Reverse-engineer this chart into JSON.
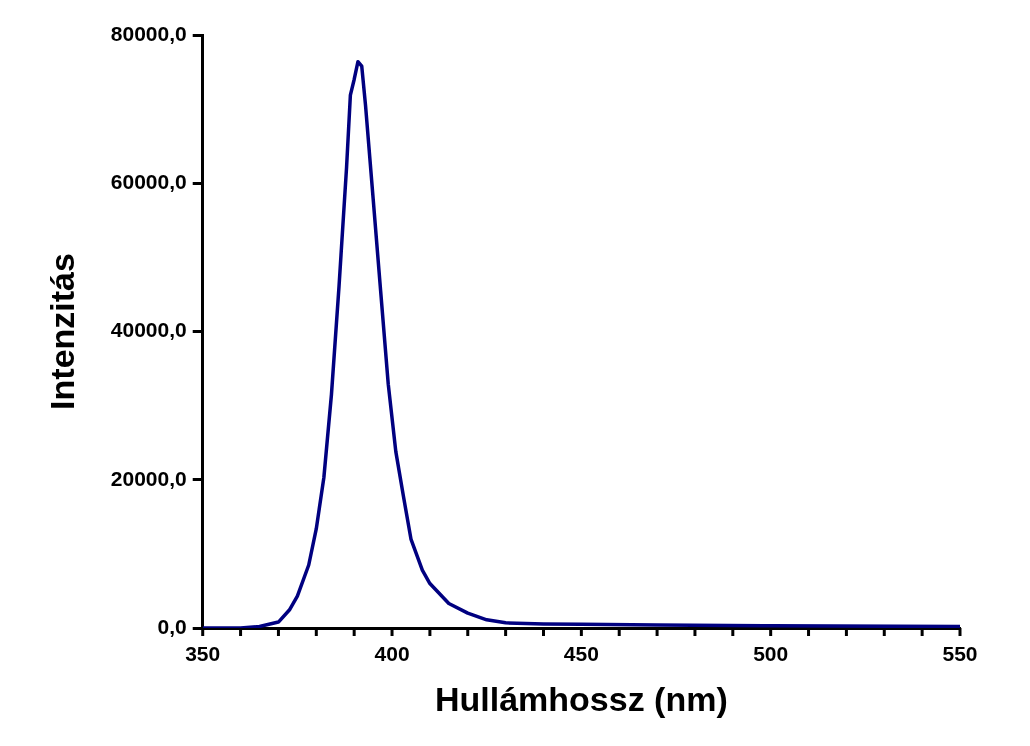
{
  "chart_data": {
    "type": "line",
    "xlabel": "Hullámhossz (nm)",
    "ylabel": "Intenzitás",
    "x": [
      350,
      360,
      365,
      370,
      373,
      375,
      378,
      380,
      382,
      384,
      386,
      388,
      389,
      390,
      391,
      392,
      393,
      395,
      397,
      399,
      401,
      403,
      405,
      408,
      410,
      415,
      420,
      425,
      430,
      440,
      450,
      470,
      500,
      550
    ],
    "series": [
      {
        "color": "#000080",
        "values": [
          0,
          0,
          200,
          800,
          2500,
          4300,
          8500,
          13400,
          20300,
          31500,
          46100,
          62200,
          71900,
          74000,
          76400,
          75800,
          70500,
          58000,
          45400,
          32900,
          23800,
          17800,
          12000,
          7800,
          6000,
          3300,
          2000,
          1100,
          700,
          550,
          500,
          400,
          300,
          200
        ]
      }
    ],
    "xlim": [
      350,
      550
    ],
    "xticks": [
      350,
      400,
      450,
      500,
      550
    ],
    "ylim": [
      0,
      80000
    ],
    "yticks": [
      {
        "value": 0,
        "label": "0,0"
      },
      {
        "value": 20000,
        "label": "20000,0"
      },
      {
        "value": 40000,
        "label": "40000,0"
      },
      {
        "value": 60000,
        "label": "60000,0"
      },
      {
        "value": 80000,
        "label": "80000,0"
      }
    ],
    "grid": false,
    "legend": false,
    "marker": "none",
    "line_style": "solid"
  }
}
